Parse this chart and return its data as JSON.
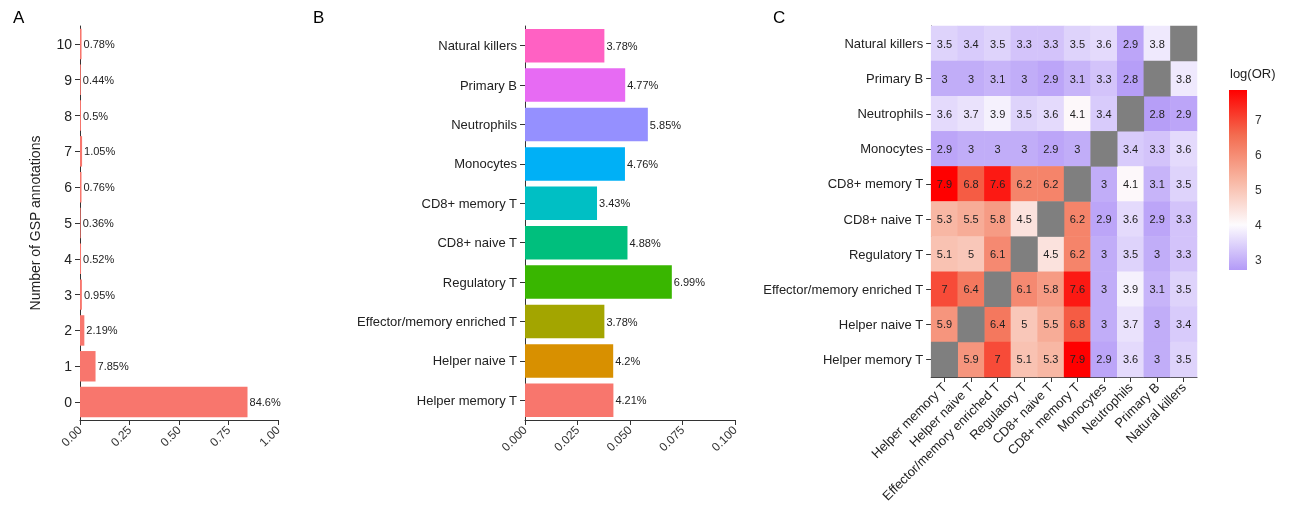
{
  "chart_data": [
    {
      "type": "bar",
      "title": "A",
      "orientation": "horizontal",
      "ylabel": "Number of GSP annotations",
      "categories": [
        "10",
        "9",
        "8",
        "7",
        "6",
        "5",
        "4",
        "3",
        "2",
        "1",
        "0"
      ],
      "values": [
        0.0078,
        0.0044,
        0.005,
        0.0105,
        0.0076,
        0.0036,
        0.0052,
        0.0095,
        0.0219,
        0.0785,
        0.846
      ],
      "value_labels": [
        "0.78%",
        "0.44%",
        "0.5%",
        "1.05%",
        "0.76%",
        "0.36%",
        "0.52%",
        "0.95%",
        "2.19%",
        "7.85%",
        "84.6%"
      ],
      "color": "#f8766d",
      "xlim": [
        0,
        1
      ],
      "xticks": [
        {
          "value": 0,
          "label": "0.00"
        },
        {
          "value": 0.25,
          "label": "0.25"
        },
        {
          "value": 0.5,
          "label": "0.50"
        },
        {
          "value": 0.75,
          "label": "0.75"
        },
        {
          "value": 1,
          "label": "1.00"
        }
      ],
      "grid": false
    },
    {
      "type": "bar",
      "title": "B",
      "orientation": "horizontal",
      "categories": [
        "Natural killers",
        "Primary B",
        "Neutrophils",
        "Monocytes",
        "CD8+ memory T",
        "CD8+ naive T",
        "Regulatory T",
        "Effector/memory enriched T",
        "Helper naive T",
        "Helper memory T"
      ],
      "values": [
        0.0378,
        0.0477,
        0.0585,
        0.0476,
        0.0343,
        0.0488,
        0.0699,
        0.0378,
        0.042,
        0.0421
      ],
      "value_labels": [
        "3.78%",
        "4.77%",
        "5.85%",
        "4.76%",
        "3.43%",
        "4.88%",
        "6.99%",
        "3.78%",
        "4.2%",
        "4.21%"
      ],
      "colors": [
        "#ff61c3",
        "#e76bf3",
        "#9590ff",
        "#00b0f6",
        "#00bfc4",
        "#00bf7d",
        "#39b600",
        "#a3a500",
        "#d89000",
        "#f8766d"
      ],
      "xlim": [
        0,
        0.1
      ],
      "xticks": [
        {
          "value": 0,
          "label": "0.000"
        },
        {
          "value": 0.025,
          "label": "0.025"
        },
        {
          "value": 0.05,
          "label": "0.050"
        },
        {
          "value": 0.075,
          "label": "0.075"
        },
        {
          "value": 0.1,
          "label": "0.100"
        }
      ],
      "grid": false
    },
    {
      "type": "heatmap",
      "title": "C",
      "clabel": "log(OR)",
      "categories": [
        "Helper memory T",
        "Helper naive T",
        "Effector/memory enriched T",
        "Regulatory T",
        "CD8+ naive T",
        "CD8+ memory T",
        "Monocytes",
        "Neutrophils",
        "Primary B",
        "Natural killers"
      ],
      "y_categories": [
        "Natural killers",
        "Primary B",
        "Neutrophils",
        "Monocytes",
        "CD8+ memory T",
        "CD8+ naive T",
        "Regulatory T",
        "Effector/memory enriched T",
        "Helper naive T",
        "Helper memory T"
      ],
      "cells": [
        [
          3.5,
          3.4,
          3.5,
          3.3,
          3.3,
          3.5,
          3.6,
          2.9,
          3.8,
          null
        ],
        [
          3,
          3,
          3.1,
          3,
          2.9,
          3.1,
          3.3,
          2.8,
          null,
          3.8
        ],
        [
          3.6,
          3.7,
          3.9,
          3.5,
          3.6,
          4.1,
          3.4,
          null,
          2.8,
          2.9
        ],
        [
          2.9,
          3,
          3,
          3,
          2.9,
          3,
          null,
          3.4,
          3.3,
          3.6
        ],
        [
          7.9,
          6.8,
          7.6,
          6.2,
          6.2,
          null,
          3,
          4.1,
          3.1,
          3.5
        ],
        [
          5.3,
          5.5,
          5.8,
          4.5,
          null,
          6.2,
          2.9,
          3.6,
          2.9,
          3.3
        ],
        [
          5.1,
          5,
          6.1,
          null,
          4.5,
          6.2,
          3,
          3.5,
          3,
          3.3
        ],
        [
          7,
          6.4,
          null,
          6.1,
          5.8,
          7.6,
          3,
          3.9,
          3.1,
          3.5
        ],
        [
          5.9,
          null,
          6.4,
          5,
          5.5,
          6.8,
          3,
          3.7,
          3,
          3.4
        ],
        [
          null,
          5.9,
          7,
          5.1,
          5.3,
          7.9,
          2.9,
          3.6,
          3,
          3.5
        ]
      ],
      "clim": [
        2.75,
        7.9
      ],
      "cticks": [
        3,
        4,
        5,
        6,
        7
      ],
      "data_labels": true
    }
  ]
}
